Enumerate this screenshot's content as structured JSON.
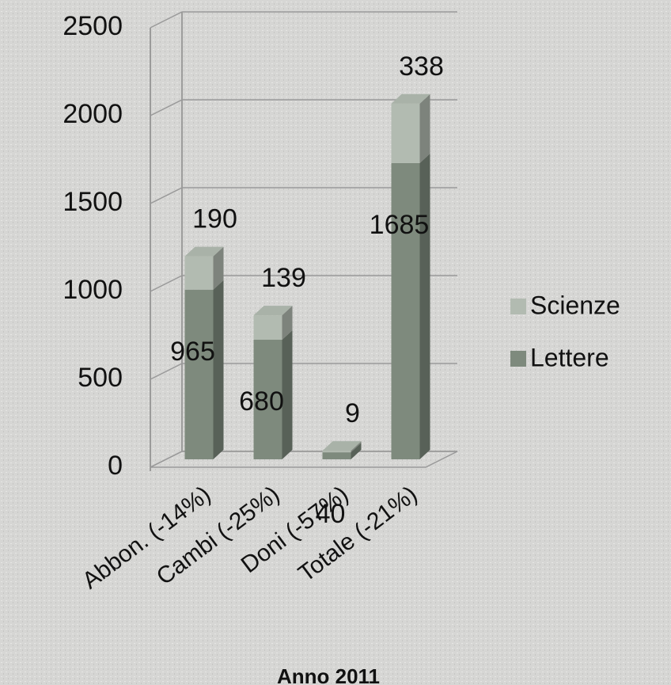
{
  "chart_data": {
    "type": "bar3d_stacked",
    "title": "Anno 2011",
    "categories": [
      "Abbon. (-14%)",
      "Cambi (-25%)",
      "Doni (-57%)",
      "Totale (-21%)"
    ],
    "series": [
      {
        "name": "Lettere",
        "color": "#7e8a7d",
        "values": [
          965,
          680,
          40,
          1685
        ]
      },
      {
        "name": "Scienze",
        "color": "#b2bbb1",
        "values": [
          190,
          139,
          9,
          338
        ]
      }
    ],
    "ylim": [
      0,
      2500
    ],
    "yticks": [
      0,
      500,
      1000,
      1500,
      2000,
      2500
    ],
    "grid": true,
    "legend": "right"
  }
}
